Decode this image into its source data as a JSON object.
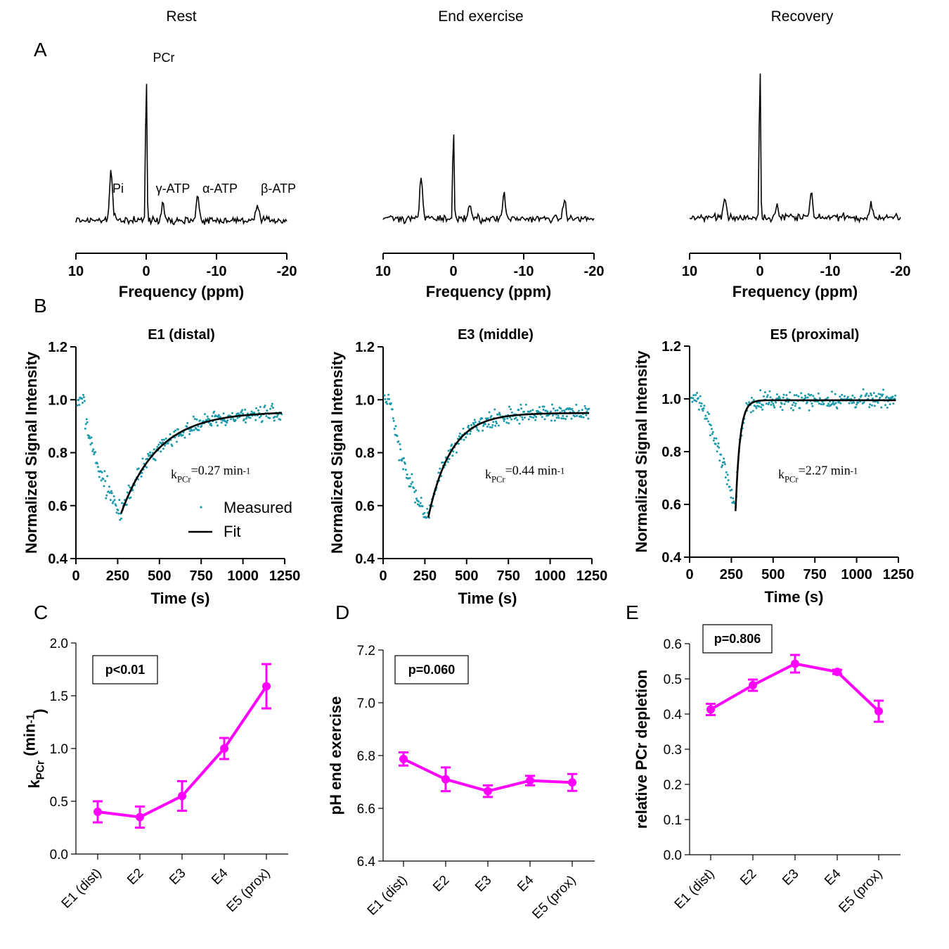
{
  "panel_letters": {
    "A": "A",
    "B": "B",
    "C": "C",
    "D": "D",
    "E": "E"
  },
  "chart_data": [
    {
      "id": "spectrum-rest",
      "type": "line",
      "title": "Rest",
      "xlabel": "Frequency (ppm)",
      "xlim": [
        10,
        -20
      ],
      "xticks": [
        10,
        0,
        -10,
        -20
      ],
      "tick_labels": [
        "10",
        "0",
        "-10",
        "-20"
      ],
      "peaks": [
        {
          "ppm": 5.0,
          "height": 0.32
        },
        {
          "ppm": 0.0,
          "height": 1.0
        },
        {
          "ppm": -2.4,
          "height": 0.12
        },
        {
          "ppm": -7.3,
          "height": 0.16
        },
        {
          "ppm": -15.8,
          "height": 0.09
        }
      ],
      "annotations": [
        {
          "text": "PCr",
          "ppm": -2.5
        },
        {
          "text": "Pi",
          "ppm": 4.0
        },
        {
          "text": "γ-ATP",
          "ppm": -3.8
        },
        {
          "text": "α-ATP",
          "ppm": -10.5
        },
        {
          "text": "β-ATP",
          "ppm": -18.8
        }
      ]
    },
    {
      "id": "spectrum-end-exercise",
      "type": "line",
      "title": "End exercise",
      "xlabel": "Frequency (ppm)",
      "xlim": [
        10,
        -20
      ],
      "xticks": [
        10,
        0,
        -10,
        -20
      ],
      "tick_labels": [
        "10",
        "0",
        "-10",
        "-20"
      ],
      "peaks": [
        {
          "ppm": 4.6,
          "height": 0.27
        },
        {
          "ppm": 0.0,
          "height": 0.63
        },
        {
          "ppm": -2.3,
          "height": 0.1
        },
        {
          "ppm": -7.2,
          "height": 0.16
        },
        {
          "ppm": -15.8,
          "height": 0.12
        }
      ],
      "annotations": []
    },
    {
      "id": "spectrum-recovery",
      "type": "line",
      "title": "Recovery",
      "xlabel": "Frequency (ppm)",
      "xlim": [
        10,
        -20
      ],
      "xticks": [
        10,
        0,
        -10,
        -20
      ],
      "tick_labels": [
        "10",
        "0",
        "-10",
        "-20"
      ],
      "peaks": [
        {
          "ppm": 5.0,
          "height": 0.12
        },
        {
          "ppm": 0.0,
          "height": 1.0
        },
        {
          "ppm": -2.4,
          "height": 0.09
        },
        {
          "ppm": -7.3,
          "height": 0.15
        },
        {
          "ppm": -15.8,
          "height": 0.09
        }
      ],
      "annotations": []
    },
    {
      "id": "recovery-e1",
      "type": "scatter",
      "title": "E1 (distal)",
      "xlabel": "Time (s)",
      "ylabel": "Normalized Signal Intensity",
      "xlim": [
        0,
        1250
      ],
      "ylim": [
        0.4,
        1.2
      ],
      "xticks": [
        0,
        250,
        500,
        750,
        1000,
        1250
      ],
      "yticks": [
        0.4,
        0.6,
        0.8,
        1.0,
        1.2
      ],
      "xtick_labels": [
        "0",
        "250",
        "500",
        "750",
        "1000",
        "1250"
      ],
      "ytick_labels": [
        "0.4",
        "0.6",
        "0.8",
        "1.0",
        "1.2"
      ],
      "t_end": 270,
      "rest_level": 1.0,
      "min_value": 0.57,
      "final_value": 0.955,
      "k_pcr": 0.27,
      "k_label": "kPCr=0.27 min-1",
      "legend": [
        "Measured",
        "Fit"
      ]
    },
    {
      "id": "recovery-e3",
      "type": "scatter",
      "title": "E3 (middle)",
      "xlabel": "Time (s)",
      "ylabel": "Normalized Signal Intensity",
      "xlim": [
        0,
        1250
      ],
      "ylim": [
        0.4,
        1.2
      ],
      "xticks": [
        0,
        250,
        500,
        750,
        1000,
        1250
      ],
      "yticks": [
        0.4,
        0.6,
        0.8,
        1.0,
        1.2
      ],
      "xtick_labels": [
        "0",
        "250",
        "500",
        "750",
        "1000",
        "1250"
      ],
      "ytick_labels": [
        "0.4",
        "0.6",
        "0.8",
        "1.0",
        "1.2"
      ],
      "t_end": 270,
      "rest_level": 1.0,
      "min_value": 0.555,
      "final_value": 0.95,
      "k_pcr": 0.44,
      "k_label": "kPCr=0.44 min-1",
      "legend": []
    },
    {
      "id": "recovery-e5",
      "type": "scatter",
      "title": "E5 (proximal)",
      "xlabel": "Time (s)",
      "ylabel": "Normalized Signal Intensity",
      "xlim": [
        0,
        1250
      ],
      "ylim": [
        0.4,
        1.2
      ],
      "xticks": [
        0,
        250,
        500,
        750,
        1000,
        1250
      ],
      "yticks": [
        0.4,
        0.6,
        0.8,
        1.0,
        1.2
      ],
      "xtick_labels": [
        "0",
        "250",
        "500",
        "750",
        "1000",
        "1250"
      ],
      "ytick_labels": [
        "0.4",
        "0.6",
        "0.8",
        "1.0",
        "1.2"
      ],
      "t_end": 275,
      "rest_level": 1.0,
      "min_value": 0.575,
      "final_value": 0.995,
      "k_pcr": 2.27,
      "k_label": "kPCr=2.27 min-1",
      "legend": []
    },
    {
      "id": "kpcr-by-muscle",
      "type": "line",
      "title": "",
      "xlabel": "",
      "ylabel": "kPCr (min-1)",
      "ylim": [
        0,
        2.0
      ],
      "yticks": [
        0,
        0.5,
        1.0,
        1.5,
        2.0
      ],
      "ytick_labels": [
        "0.0",
        "0.5",
        "1.0",
        "1.5",
        "2.0"
      ],
      "categories": [
        "E1 (dist)",
        "E2",
        "E3",
        "E4",
        "E5 (prox)"
      ],
      "values": [
        0.4,
        0.35,
        0.55,
        1.0,
        1.59
      ],
      "errors": [
        0.1,
        0.1,
        0.14,
        0.1,
        0.21
      ],
      "p_label": "p<0.01",
      "color": "#ff00ff"
    },
    {
      "id": "ph-by-muscle",
      "type": "line",
      "title": "",
      "xlabel": "",
      "ylabel": "pH end exercise",
      "ylim": [
        6.4,
        7.2
      ],
      "yticks": [
        6.4,
        6.6,
        6.8,
        7.0,
        7.2
      ],
      "ytick_labels": [
        "6.4",
        "6.6",
        "6.8",
        "7.0",
        "7.2"
      ],
      "categories": [
        "E1 (dist)",
        "E2",
        "E3",
        "E4",
        "E5 (prox)"
      ],
      "values": [
        6.787,
        6.71,
        6.665,
        6.705,
        6.698
      ],
      "errors": [
        0.025,
        0.045,
        0.022,
        0.018,
        0.032
      ],
      "p_label": "p=0.060",
      "color": "#ff00ff"
    },
    {
      "id": "pcr-depletion-by-muscle",
      "type": "line",
      "title": "",
      "xlabel": "",
      "ylabel": "relative PCr depletion",
      "ylim": [
        0,
        0.6
      ],
      "yticks": [
        0,
        0.1,
        0.2,
        0.3,
        0.4,
        0.5,
        0.6
      ],
      "ytick_labels": [
        "0.0",
        "0.1",
        "0.2",
        "0.3",
        "0.4",
        "0.5",
        "0.6"
      ],
      "categories": [
        "E1 (dist)",
        "E2",
        "E3",
        "E4",
        "E5 (prox)"
      ],
      "values": [
        0.413,
        0.482,
        0.543,
        0.52,
        0.408
      ],
      "errors": [
        0.016,
        0.016,
        0.025,
        0.006,
        0.03
      ],
      "p_label": "p=0.806",
      "color": "#ff00ff"
    }
  ]
}
